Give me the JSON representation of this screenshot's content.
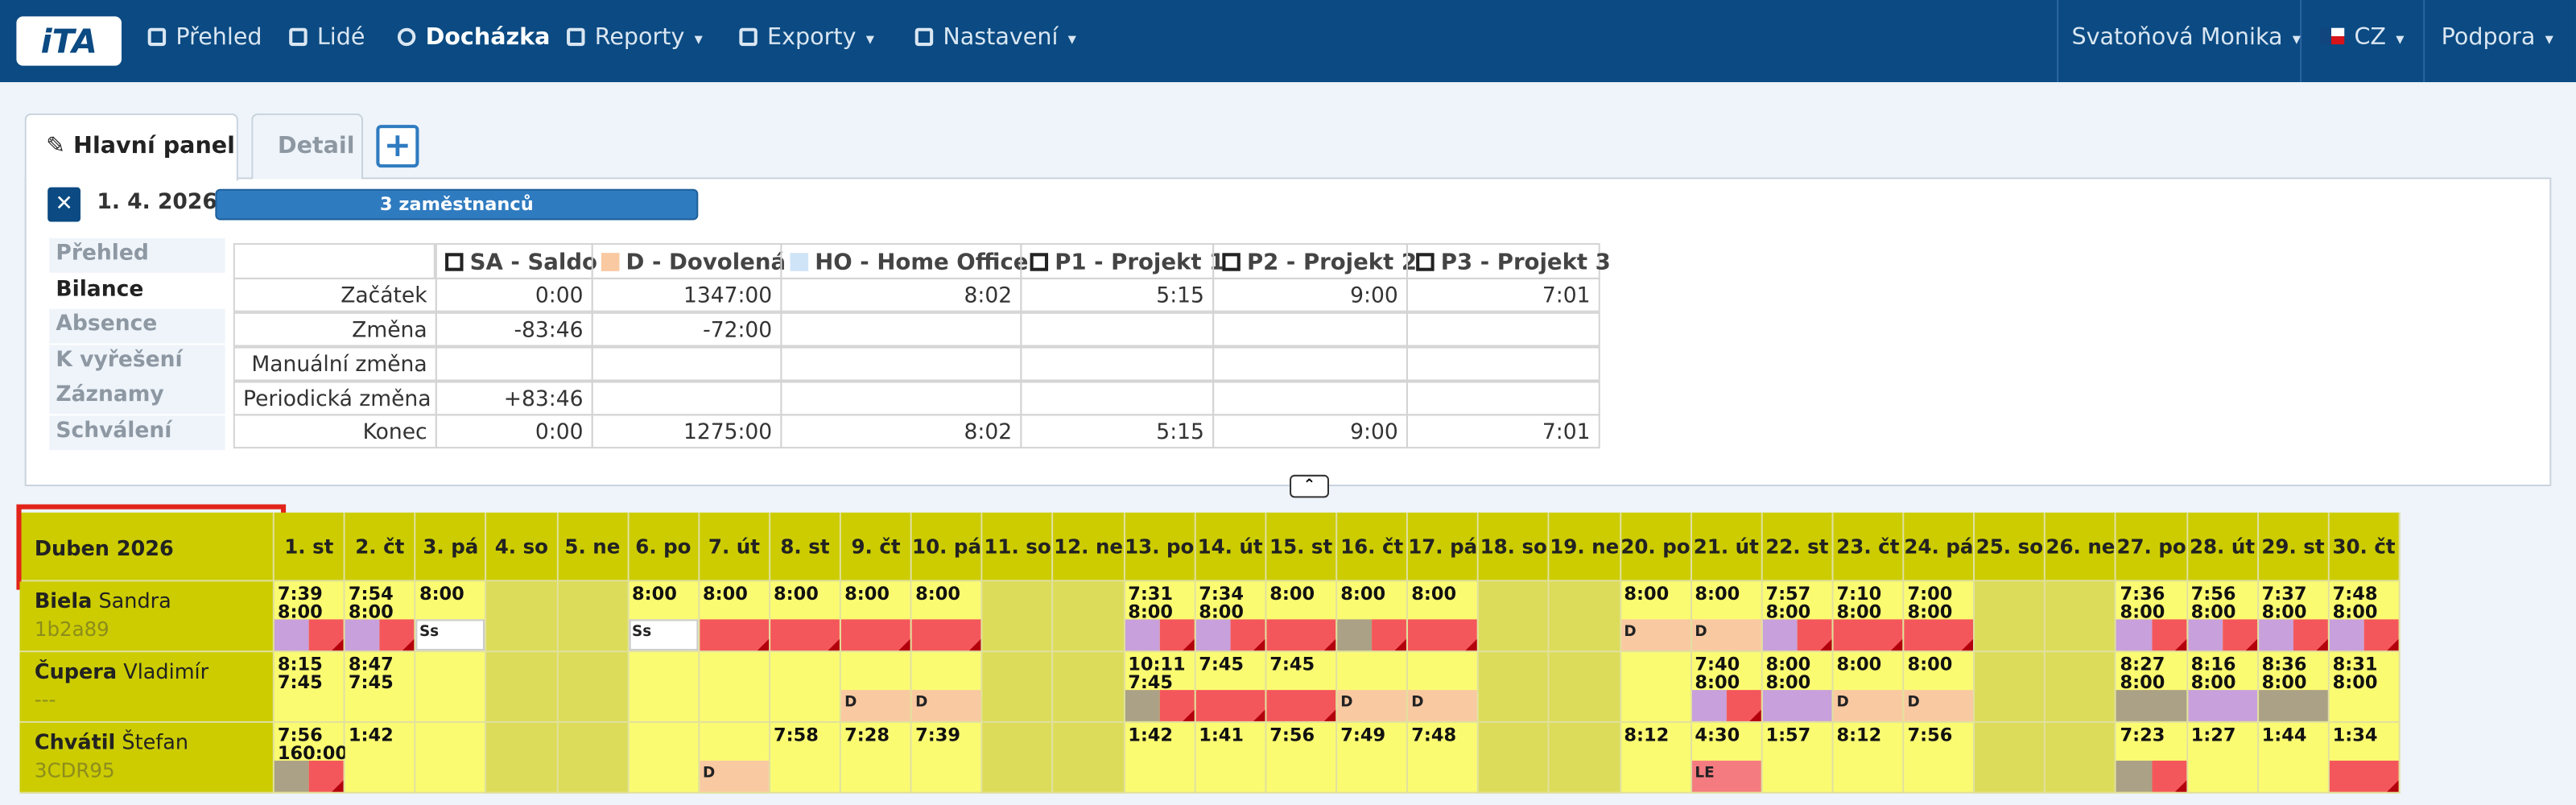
{
  "nav": {
    "logo": "iTA",
    "items": [
      "Přehled",
      "Lidé",
      "Docházka",
      "Reporty",
      "Exporty",
      "Nastavení"
    ],
    "user": "Svatoňová Monika",
    "lang": "CZ",
    "support": "Podpora"
  },
  "tabs": [
    "Hlavní panel",
    "Detail"
  ],
  "date": "1. 4. 2026",
  "badge": "3 zaměstnanců",
  "side_menu": [
    "Přehled",
    "Bilance",
    "Absence",
    "K vyřešení",
    "Záznamy",
    "Schválení"
  ],
  "balance": {
    "columns": [
      {
        "label": "SA - Saldo",
        "color": "#ffffff"
      },
      {
        "label": "D - Dovolená",
        "color": "#f9c9a2"
      },
      {
        "label": "HO - Home Office",
        "color": "#cfe4f7"
      },
      {
        "label": "P1 - Projekt 1",
        "color": "#ffffff"
      },
      {
        "label": "P2 - Projekt 2",
        "color": "#ffffff"
      },
      {
        "label": "P3 - Projekt 3",
        "color": "#ffffff"
      }
    ],
    "rows": [
      {
        "label": "Začátek",
        "values": [
          "0:00",
          "1347:00",
          "8:02",
          "5:15",
          "9:00",
          "7:01"
        ]
      },
      {
        "label": "Změna",
        "values": [
          "-83:46",
          "-72:00",
          null,
          null,
          null,
          null
        ]
      },
      {
        "label": "Manuální změna",
        "values": [
          null,
          null,
          null,
          null,
          null,
          null
        ]
      },
      {
        "label": "Periodická změna",
        "values": [
          "+83:46",
          null,
          null,
          null,
          null,
          null
        ]
      },
      {
        "label": "Konec",
        "values": [
          "0:00",
          "1275:00",
          "8:02",
          "5:15",
          "9:00",
          "7:01"
        ]
      }
    ]
  },
  "calendar": {
    "month": "Duben 2026",
    "days": [
      {
        "label": "1. st"
      },
      {
        "label": "2. čt"
      },
      {
        "label": "3. pá"
      },
      {
        "label": "4. so",
        "weekend": true
      },
      {
        "label": "5. ne",
        "weekend": true
      },
      {
        "label": "6. po"
      },
      {
        "label": "7. út"
      },
      {
        "label": "8. st"
      },
      {
        "label": "9. čt"
      },
      {
        "label": "10. pá"
      },
      {
        "label": "11. so",
        "weekend": true
      },
      {
        "label": "12. ne",
        "weekend": true
      },
      {
        "label": "13. po"
      },
      {
        "label": "14. út"
      },
      {
        "label": "15. st"
      },
      {
        "label": "16. čt"
      },
      {
        "label": "17. pá"
      },
      {
        "label": "18. so",
        "weekend": true
      },
      {
        "label": "19. ne",
        "weekend": true
      },
      {
        "label": "20. po"
      },
      {
        "label": "21. út"
      },
      {
        "label": "22. st"
      },
      {
        "label": "23. čt"
      },
      {
        "label": "24. pá"
      },
      {
        "label": "25. so",
        "weekend": true
      },
      {
        "label": "26. ne",
        "weekend": true
      },
      {
        "label": "27. po"
      },
      {
        "label": "28. út"
      },
      {
        "label": "29. st"
      },
      {
        "label": "30. čt"
      }
    ],
    "employees": [
      {
        "surname": "Biela",
        "firstname": "Sandra",
        "code": "1b2a89",
        "cells": [
          {
            "lines": [
              "7:39",
              "8:00"
            ],
            "strip": [
              "#c8a0dc",
              "#f4575b"
            ]
          },
          {
            "lines": [
              "7:54",
              "8:00"
            ],
            "strip": [
              "#c8a0dc",
              "#f4575b"
            ]
          },
          {
            "lines": [
              "8:00"
            ],
            "strip": [
              "#ffffff"
            ],
            "label": "Ss"
          },
          null,
          null,
          {
            "lines": [
              "8:00"
            ],
            "strip": [
              "#ffffff"
            ],
            "label": "Ss"
          },
          {
            "lines": [
              "8:00"
            ],
            "strip": [
              "#f4575b"
            ]
          },
          {
            "lines": [
              "8:00"
            ],
            "strip": [
              "#f4575b"
            ]
          },
          {
            "lines": [
              "8:00"
            ],
            "strip": [
              "#f4575b"
            ]
          },
          {
            "lines": [
              "8:00"
            ],
            "strip": [
              "#f4575b"
            ]
          },
          null,
          null,
          {
            "lines": [
              "7:31",
              "8:00"
            ],
            "strip": [
              "#c8a0dc",
              "#f4575b"
            ]
          },
          {
            "lines": [
              "7:34",
              "8:00"
            ],
            "strip": [
              "#c8a0dc",
              "#f4575b"
            ]
          },
          {
            "lines": [
              "8:00"
            ],
            "strip": [
              "#f4575b"
            ]
          },
          {
            "lines": [
              "8:00"
            ],
            "strip": [
              "#aba186",
              "#f4575b"
            ]
          },
          {
            "lines": [
              "8:00"
            ],
            "strip": [
              "#f4575b"
            ]
          },
          null,
          null,
          {
            "lines": [
              "8:00"
            ],
            "strip": [
              "#f9c9a2"
            ],
            "label": "D"
          },
          {
            "lines": [
              "8:00"
            ],
            "strip": [
              "#f9c9a2"
            ],
            "label": "D"
          },
          {
            "lines": [
              "7:57",
              "8:00"
            ],
            "strip": [
              "#c8a0dc",
              "#f4575b"
            ]
          },
          {
            "lines": [
              "7:10",
              "8:00"
            ],
            "strip": [
              "#f4575b"
            ]
          },
          {
            "lines": [
              "7:00",
              "8:00"
            ],
            "strip": [
              "#f4575b"
            ]
          },
          null,
          null,
          {
            "lines": [
              "7:36",
              "8:00"
            ],
            "strip": [
              "#c8a0dc",
              "#f4575b"
            ]
          },
          {
            "lines": [
              "7:56",
              "8:00"
            ],
            "strip": [
              "#c8a0dc",
              "#f4575b"
            ]
          },
          {
            "lines": [
              "7:37",
              "8:00"
            ],
            "strip": [
              "#c8a0dc",
              "#f4575b"
            ]
          },
          {
            "lines": [
              "7:48",
              "8:00"
            ],
            "strip": [
              "#c8a0dc",
              "#f4575b"
            ]
          }
        ]
      },
      {
        "surname": "Čupera",
        "firstname": "Vladimír",
        "code": "---",
        "cells": [
          {
            "lines": [
              "8:15",
              "7:45"
            ]
          },
          {
            "lines": [
              "8:47",
              "7:45"
            ]
          },
          null,
          null,
          null,
          null,
          null,
          null,
          {
            "strip": [
              "#f9c9a2"
            ],
            "label": "D"
          },
          {
            "strip": [
              "#f9c9a2"
            ],
            "label": "D"
          },
          null,
          null,
          {
            "lines": [
              "10:11",
              "7:45"
            ],
            "strip": [
              "#aba186",
              "#f4575b"
            ]
          },
          {
            "lines": [
              "7:45"
            ],
            "strip": [
              "#f4575b"
            ]
          },
          {
            "lines": [
              "7:45"
            ],
            "strip": [
              "#f4575b"
            ]
          },
          {
            "strip": [
              "#f9c9a2"
            ],
            "label": "D"
          },
          {
            "strip": [
              "#f9c9a2"
            ],
            "label": "D"
          },
          null,
          null,
          null,
          {
            "lines": [
              "7:40",
              "8:00"
            ],
            "strip": [
              "#c8a0dc",
              "#f4575b"
            ]
          },
          {
            "lines": [
              "8:00",
              "8:00"
            ],
            "strip": [
              "#c8a0dc"
            ]
          },
          {
            "lines": [
              "8:00"
            ],
            "strip": [
              "#f9c9a2"
            ],
            "label": "D"
          },
          {
            "lines": [
              "8:00"
            ],
            "strip": [
              "#f9c9a2"
            ],
            "label": "D"
          },
          null,
          null,
          {
            "lines": [
              "8:27",
              "8:00"
            ],
            "strip": [
              "#aba186"
            ]
          },
          {
            "lines": [
              "8:16",
              "8:00"
            ],
            "strip": [
              "#c8a0dc"
            ]
          },
          {
            "lines": [
              "8:36",
              "8:00"
            ],
            "strip": [
              "#aba186"
            ]
          },
          {
            "lines": [
              "8:31",
              "8:00"
            ]
          }
        ]
      },
      {
        "surname": "Chvátil",
        "firstname": "Štefan",
        "code": "3CDR95",
        "cells": [
          {
            "lines": [
              "7:56",
              "160:00"
            ],
            "strip": [
              "#aba186",
              "#f4575b"
            ]
          },
          {
            "lines": [
              "1:42"
            ]
          },
          null,
          null,
          null,
          null,
          {
            "strip": [
              "#f9c9a2"
            ],
            "label": "D"
          },
          {
            "lines": [
              "7:58"
            ]
          },
          {
            "lines": [
              "7:28"
            ]
          },
          {
            "lines": [
              "7:39"
            ]
          },
          null,
          null,
          {
            "lines": [
              "1:42"
            ]
          },
          {
            "lines": [
              "1:41"
            ]
          },
          {
            "lines": [
              "7:56"
            ]
          },
          {
            "lines": [
              "7:49"
            ]
          },
          {
            "lines": [
              "7:48"
            ]
          },
          null,
          null,
          {
            "lines": [
              "8:12"
            ]
          },
          {
            "lines": [
              "4:30"
            ],
            "strip": [
              "#f47c80"
            ],
            "label": "LE"
          },
          {
            "lines": [
              "1:57"
            ]
          },
          {
            "lines": [
              "8:12"
            ]
          },
          {
            "lines": [
              "7:56"
            ]
          },
          null,
          null,
          {
            "lines": [
              "7:23"
            ],
            "strip": [
              "#aba186",
              "#f4575b"
            ]
          },
          {
            "lines": [
              "1:27"
            ]
          },
          {
            "lines": [
              "1:44"
            ]
          },
          {
            "lines": [
              "1:34"
            ],
            "strip": [
              "#f4575b"
            ]
          }
        ]
      }
    ]
  }
}
